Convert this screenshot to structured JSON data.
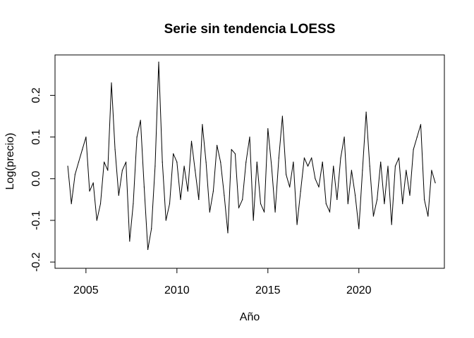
{
  "chart_data": {
    "type": "line",
    "title": "Serie sin tendencia LOESS",
    "xlabel": "Año",
    "ylabel": "Log(precio)",
    "xlim": [
      2003.3,
      2024.7
    ],
    "ylim": [
      -0.215,
      0.297
    ],
    "xticks": [
      2005,
      2010,
      2015,
      2020
    ],
    "yticks": [
      -0.2,
      -0.1,
      0.0,
      0.1,
      0.2
    ],
    "xtick_labels": [
      "2005",
      "2010",
      "2015",
      "2020"
    ],
    "ytick_labels": [
      "-0.2",
      "-0.1",
      "0.0",
      "0.1",
      "0.2"
    ],
    "grid": false,
    "legend": "none",
    "line_color": "#000000",
    "series": [
      {
        "x": [
          2004.0,
          2004.2,
          2004.4,
          2004.6,
          2004.8,
          2005.0,
          2005.2,
          2005.4,
          2005.6,
          2005.8,
          2006.0,
          2006.2,
          2006.4,
          2006.6,
          2006.8,
          2007.0,
          2007.2,
          2007.4,
          2007.6,
          2007.8,
          2008.0,
          2008.2,
          2008.4,
          2008.6,
          2008.8,
          2009.0,
          2009.2,
          2009.4,
          2009.6,
          2009.8,
          2010.0,
          2010.2,
          2010.4,
          2010.6,
          2010.8,
          2011.0,
          2011.2,
          2011.4,
          2011.6,
          2011.8,
          2012.0,
          2012.2,
          2012.4,
          2012.6,
          2012.8,
          2013.0,
          2013.2,
          2013.4,
          2013.6,
          2013.8,
          2014.0,
          2014.2,
          2014.4,
          2014.6,
          2014.8,
          2015.0,
          2015.2,
          2015.4,
          2015.6,
          2015.8,
          2016.0,
          2016.2,
          2016.4,
          2016.6,
          2016.8,
          2017.0,
          2017.2,
          2017.4,
          2017.6,
          2017.8,
          2018.0,
          2018.2,
          2018.4,
          2018.6,
          2018.8,
          2019.0,
          2019.2,
          2019.4,
          2019.6,
          2019.8,
          2020.0,
          2020.2,
          2020.4,
          2020.6,
          2020.8,
          2021.0,
          2021.2,
          2021.4,
          2021.6,
          2021.8,
          2022.0,
          2022.2,
          2022.4,
          2022.6,
          2022.8,
          2023.0,
          2023.2,
          2023.4,
          2023.6,
          2023.8,
          2024.0,
          2024.2
        ],
        "y": [
          0.03,
          -0.06,
          0.01,
          0.04,
          0.07,
          0.1,
          -0.03,
          -0.01,
          -0.1,
          -0.06,
          0.04,
          0.02,
          0.23,
          0.07,
          -0.04,
          0.02,
          0.04,
          -0.15,
          -0.06,
          0.1,
          0.14,
          -0.02,
          -0.17,
          -0.12,
          0.03,
          0.28,
          0.04,
          -0.1,
          -0.06,
          0.06,
          0.04,
          -0.05,
          0.03,
          -0.03,
          0.09,
          0.02,
          -0.05,
          0.13,
          0.04,
          -0.08,
          -0.03,
          0.08,
          0.04,
          -0.04,
          -0.13,
          0.07,
          0.06,
          -0.07,
          -0.05,
          0.04,
          0.1,
          -0.1,
          0.04,
          -0.06,
          -0.08,
          0.12,
          0.03,
          -0.08,
          0.05,
          0.15,
          0.01,
          -0.02,
          0.04,
          -0.11,
          -0.03,
          0.05,
          0.03,
          0.05,
          0.0,
          -0.02,
          0.04,
          -0.06,
          -0.08,
          0.03,
          -0.05,
          0.05,
          0.1,
          -0.06,
          0.02,
          -0.04,
          -0.12,
          0.02,
          0.16,
          0.03,
          -0.09,
          -0.05,
          0.04,
          -0.06,
          0.03,
          -0.11,
          0.03,
          0.05,
          -0.06,
          0.02,
          -0.04,
          0.07,
          0.1,
          0.13,
          -0.05,
          -0.09,
          0.02,
          -0.01
        ]
      }
    ]
  }
}
